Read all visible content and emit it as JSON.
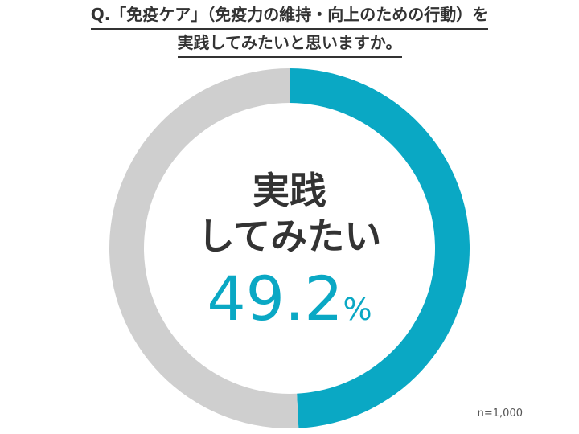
{
  "question": {
    "line1": "Q.「免疫ケア」（免疫力の維持・向上のための行動）を",
    "line2": "実践してみたいと思いますか。"
  },
  "sample_size": "n=1,000",
  "colors": {
    "highlight": "#0aa8c4",
    "remainder": "#cfcfcf",
    "text": "#333333"
  },
  "chart_data": {
    "type": "pie",
    "style": "donut",
    "title": "Q.「免疫ケア」（免疫力の維持・向上のための行動）を実践してみたいと思いますか。",
    "slices": [
      {
        "label": "実践してみたい",
        "value": 49.2,
        "color": "#0aa8c4"
      },
      {
        "value": 50.8,
        "color": "#cfcfcf"
      }
    ],
    "center_label_line1": "実践",
    "center_label_line2": "してみたい",
    "center_value": "49.2",
    "center_unit": "%"
  }
}
